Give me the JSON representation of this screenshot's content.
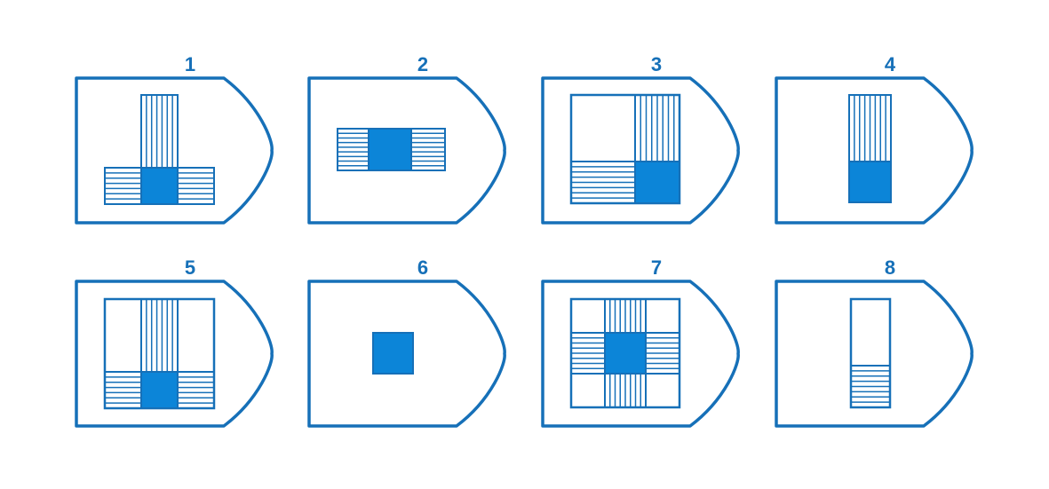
{
  "colors": {
    "outline": "#1670b8",
    "fill": "#0c85d8",
    "background": "#ffffff"
  },
  "panels": [
    {
      "label": "1",
      "pattern": "t-shape"
    },
    {
      "label": "2",
      "pattern": "horizontal-bar"
    },
    {
      "label": "3",
      "pattern": "quadrant-bottom-right"
    },
    {
      "label": "4",
      "pattern": "vertical-bar"
    },
    {
      "label": "5",
      "pattern": "t-shape-boxed"
    },
    {
      "label": "6",
      "pattern": "center-square"
    },
    {
      "label": "7",
      "pattern": "cross-boxed"
    },
    {
      "label": "8",
      "pattern": "vertical-bar-outline"
    }
  ]
}
